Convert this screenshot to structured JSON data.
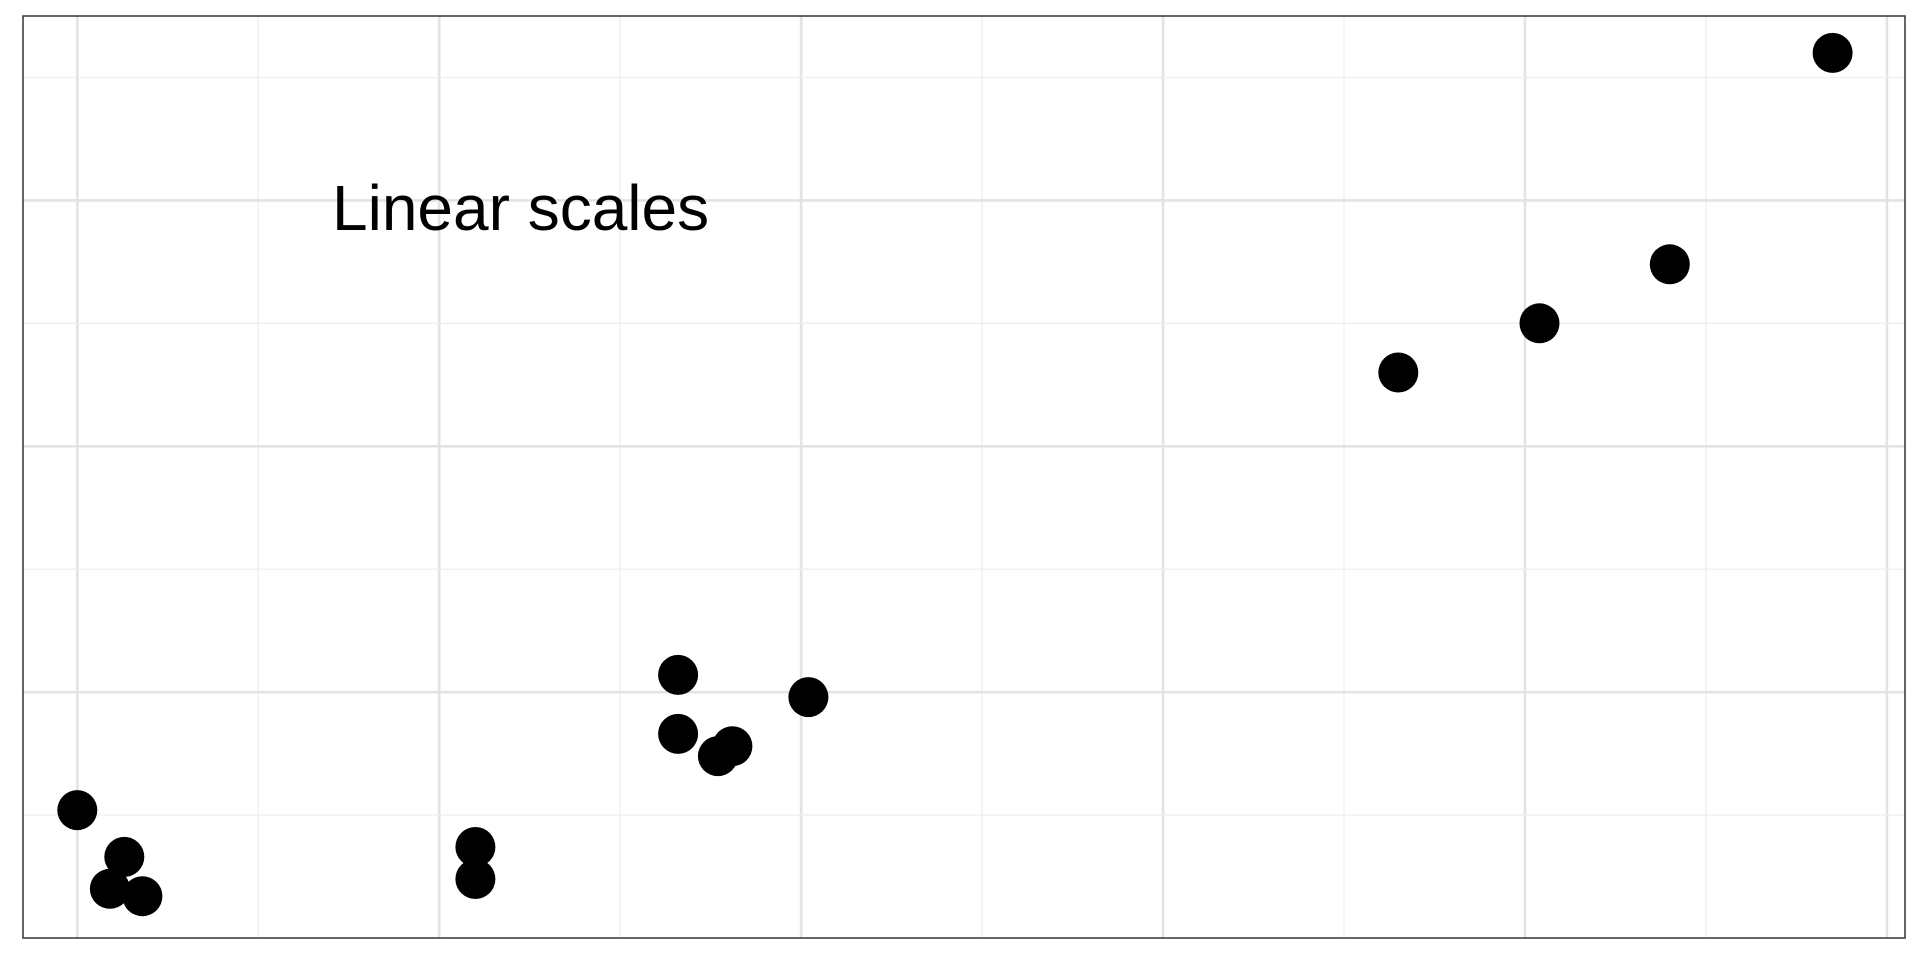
{
  "chart_data": {
    "type": "scatter",
    "annotation": "Linear scales",
    "grid": true,
    "xlim": [
      -0.15,
      5.05
    ],
    "ylim": [
      0,
      3.75
    ],
    "points": [
      {
        "x": 0.0,
        "y": 0.52
      },
      {
        "x": 0.13,
        "y": 0.33
      },
      {
        "x": 0.09,
        "y": 0.2
      },
      {
        "x": 0.18,
        "y": 0.17
      },
      {
        "x": 1.1,
        "y": 0.37
      },
      {
        "x": 1.1,
        "y": 0.24
      },
      {
        "x": 1.66,
        "y": 1.07
      },
      {
        "x": 1.66,
        "y": 0.83
      },
      {
        "x": 1.77,
        "y": 0.74
      },
      {
        "x": 1.81,
        "y": 0.78
      },
      {
        "x": 2.02,
        "y": 0.98
      },
      {
        "x": 3.65,
        "y": 2.3
      },
      {
        "x": 4.04,
        "y": 2.5
      },
      {
        "x": 4.4,
        "y": 2.74
      },
      {
        "x": 4.85,
        "y": 3.6
      }
    ],
    "colors": {
      "point": "#000000",
      "grid_major": "#e3e3e3",
      "grid_minor": "#efefef",
      "border": "#333333",
      "background": "#ffffff"
    }
  }
}
